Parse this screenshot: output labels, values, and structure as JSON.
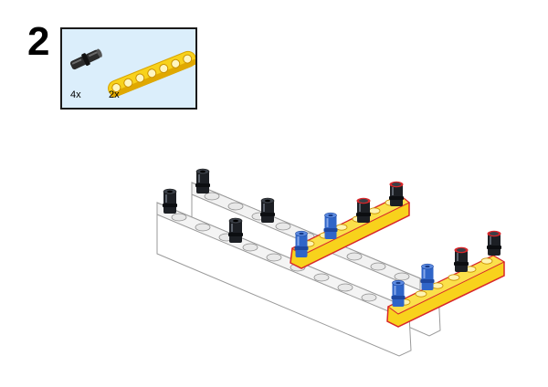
{
  "step": {
    "number": "2"
  },
  "parts_list": {
    "items": [
      {
        "icon": "black-friction-pin-icon",
        "count": "4x",
        "color": "#2b2b2b"
      },
      {
        "icon": "yellow-7-hole-beam-icon",
        "count": "2x",
        "color": "#f8d21c"
      }
    ],
    "background": "#dbeefb"
  },
  "colors": {
    "white_beam": "#ffffff",
    "yellow_beam": "#f8d21c",
    "yellow_edge": "#d8262a",
    "black_pin": "#1c1f24",
    "blue_pin": "#2f65c8"
  }
}
